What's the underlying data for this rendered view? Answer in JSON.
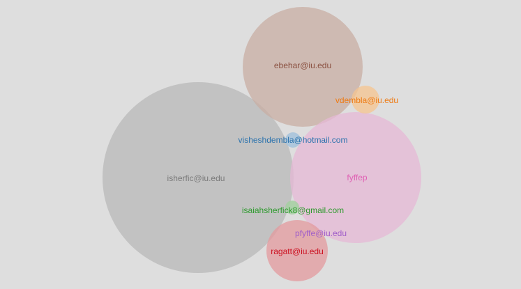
{
  "chart_data": {
    "type": "bubble",
    "nodes": [
      {
        "label": "isherfic@iu.edu",
        "color": "#b8b8b8",
        "text_color": "#7a7a7a"
      },
      {
        "label": "ebehar@iu.edu",
        "color": "#c8ada3",
        "text_color": "#8a5040"
      },
      {
        "label": "fyffep",
        "color": "#e6b8d6",
        "text_color": "#e060b4"
      },
      {
        "label": "ragatt@iu.edu",
        "color": "#e39a9e",
        "text_color": "#cc1020"
      },
      {
        "label": "vdembla@iu.edu",
        "color": "#f5c48f",
        "text_color": "#ee7a12"
      },
      {
        "label": "visheshdembla@hotmail.com",
        "color": "#a6c3dc",
        "text_color": "#2a72ad"
      },
      {
        "label": "isaiahsherfick8@gmail.com",
        "color": "#a5cfa1",
        "text_color": "#2d9a2d"
      },
      {
        "label": "pfyffe@iu.edu",
        "color": "#d6b9e0",
        "text_color": "#a05ec9"
      }
    ]
  }
}
